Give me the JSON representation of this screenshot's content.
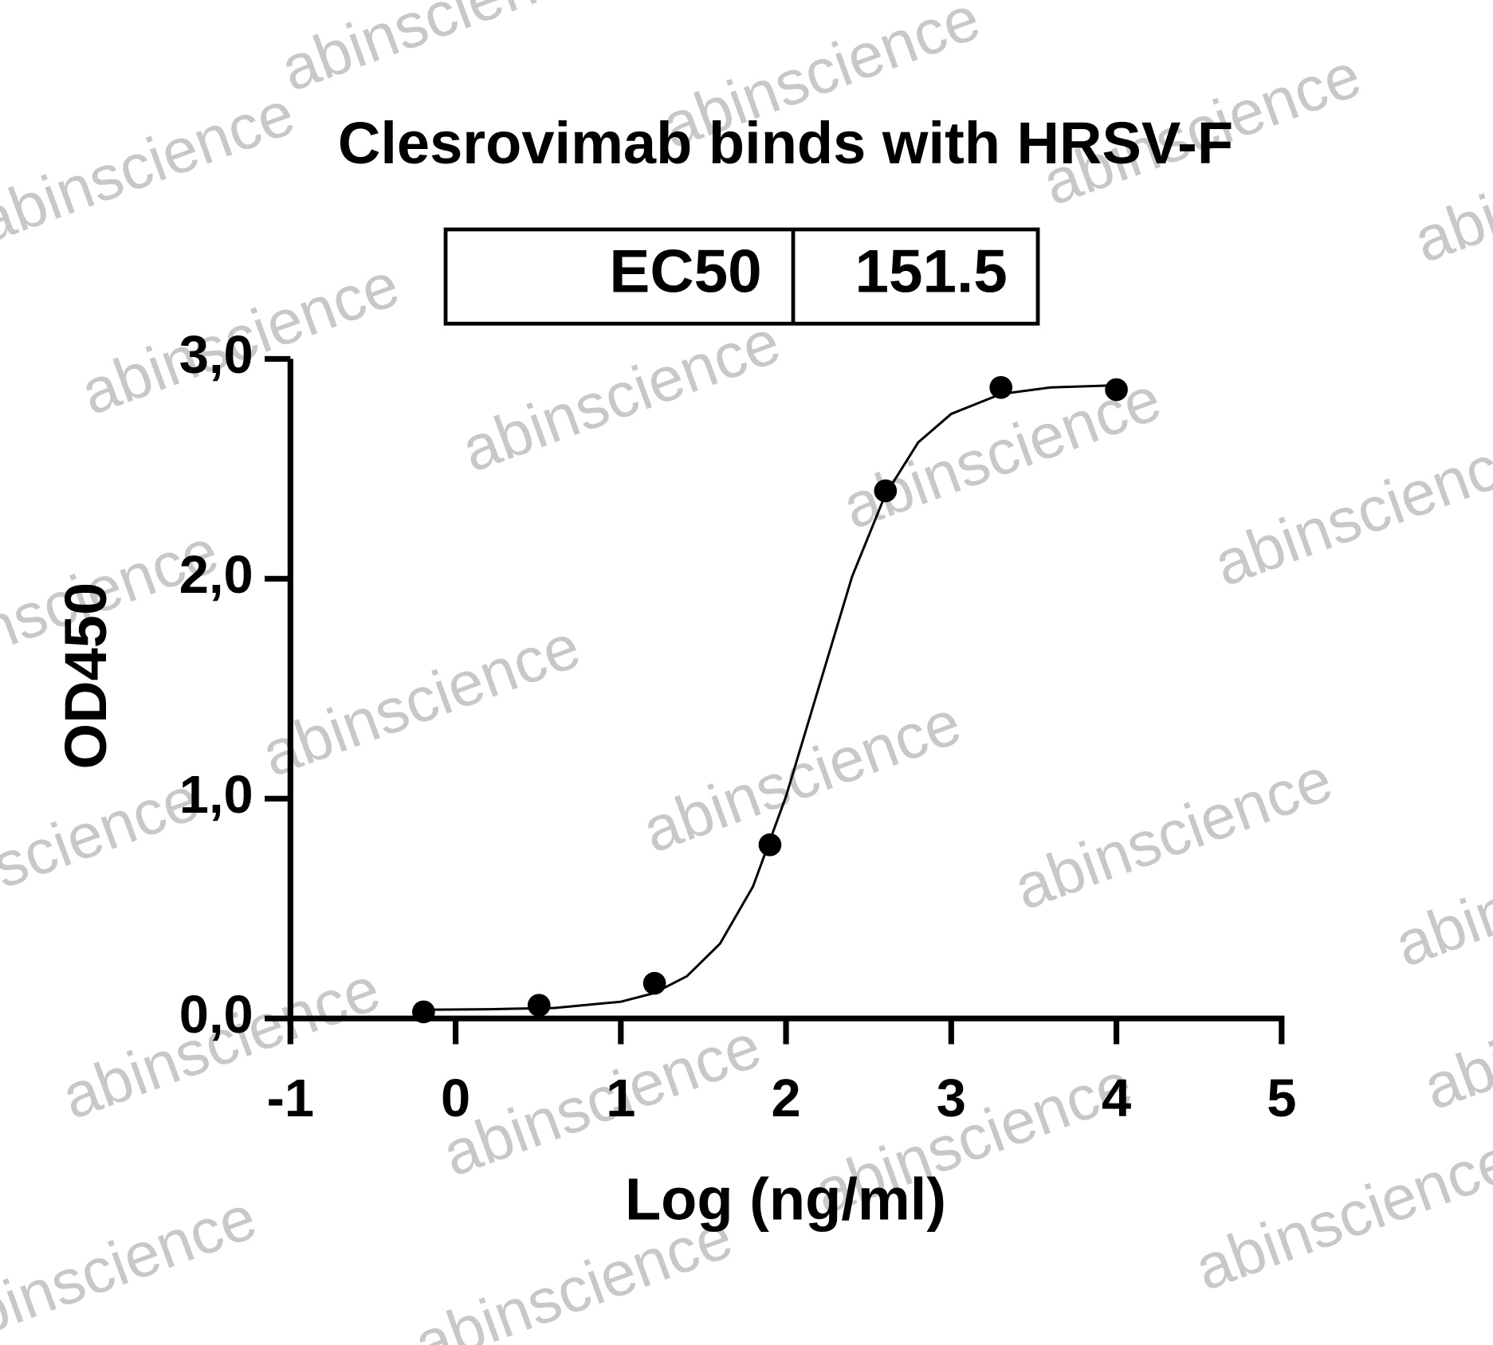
{
  "chart_data": {
    "type": "scatter",
    "title": "Clesrovimab binds with HRSV-F",
    "table": [
      [
        "EC50",
        "151.5"
      ]
    ],
    "x_label": "Log (ng/ml)",
    "y_label": "OD450",
    "watermark": "abinscience",
    "x": [
      -0.194,
      0.505,
      1.204,
      1.903,
      2.602,
      3.301,
      4.0
    ],
    "values": [
      0.03,
      0.06,
      0.16,
      0.79,
      2.4,
      2.87,
      2.86
    ],
    "color": "#000000",
    "fit": {
      "x": [
        -0.2,
        0.2,
        0.6,
        1.0,
        1.2,
        1.4,
        1.6,
        1.8,
        2.0,
        2.2,
        2.4,
        2.6,
        2.8,
        3.0,
        3.3,
        3.6,
        4.0
      ],
      "values": [
        0.04,
        0.042,
        0.048,
        0.076,
        0.115,
        0.192,
        0.34,
        0.6,
        1.01,
        1.51,
        2.01,
        2.38,
        2.62,
        2.75,
        2.84,
        2.87,
        2.88
      ]
    },
    "xlim": [
      -1,
      5
    ],
    "ylim": [
      0,
      3
    ],
    "xticks": [
      -1,
      0,
      1,
      2,
      3,
      4,
      5
    ],
    "yticks": [
      {
        "value": 0,
        "label": "0,0"
      },
      {
        "value": 1,
        "label": "1,0"
      },
      {
        "value": 2,
        "label": "2,0"
      },
      {
        "value": 3,
        "label": "3,0"
      }
    ],
    "grid": false
  }
}
